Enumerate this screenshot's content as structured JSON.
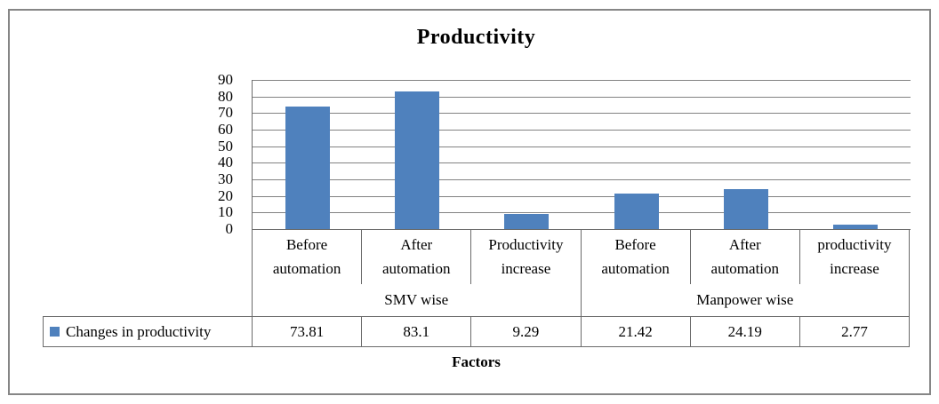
{
  "chart_data": {
    "type": "bar",
    "title": "Productivity",
    "xlabel": "Factors",
    "ylabel": "",
    "ylim": [
      0,
      90
    ],
    "ytick_step": 10,
    "yticks": [
      "90",
      "80",
      "70",
      "60",
      "50",
      "40",
      "30",
      "20",
      "10",
      "0"
    ],
    "grid": true,
    "legend_position": "bottom-left-table-cell",
    "categories": [
      "Before automation",
      "After automation",
      "Productivity increase",
      "Before automation",
      "After automation",
      "productivity increase"
    ],
    "category_groups": [
      {
        "label": "SMV wise",
        "span": 3
      },
      {
        "label": "Manpower wise",
        "span": 3
      }
    ],
    "series": [
      {
        "name": "Changes in productivity",
        "values": [
          73.81,
          83.1,
          9.29,
          21.42,
          24.19,
          2.77
        ]
      }
    ],
    "value_labels": [
      "73.81",
      "83.1",
      "9.29",
      "21.42",
      "24.19",
      "2.77"
    ]
  },
  "colors": {
    "bar": "#4f81bd",
    "legend_swatch": "#4f81bd",
    "gridline": "#828282",
    "axis_and_table_lines": "#6a6a6a",
    "outer_border": "#868686",
    "text": "#000000",
    "background": "#ffffff"
  }
}
